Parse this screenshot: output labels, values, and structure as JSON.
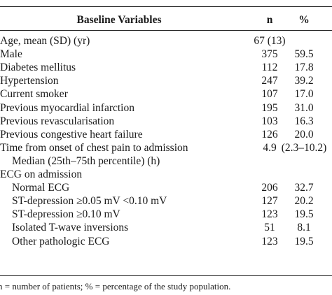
{
  "table": {
    "header": [
      "Baseline Variables",
      "n",
      "%"
    ],
    "rows": [
      {
        "label": "Age, mean (SD) (yr)",
        "n": "67 (13)"
      },
      {
        "label": "Male",
        "n": "375",
        "pct": "59.5"
      },
      {
        "label": "Diabetes mellitus",
        "n": "112",
        "pct": "17.8"
      },
      {
        "label": "Hypertension",
        "n": "247",
        "pct": "39.2"
      },
      {
        "label": "Current smoker",
        "n": "107",
        "pct": "17.0"
      },
      {
        "label": "Previous myocardial infarction",
        "n": "195",
        "pct": "31.0"
      },
      {
        "label": "Previous revascularisation",
        "n": "103",
        "pct": "16.3"
      },
      {
        "label": "Previous congestive heart failure",
        "n": "126",
        "pct": "20.0"
      },
      {
        "label": "Time from onset of chest pain to admission",
        "n": "4.9",
        "pct": "(2.3–10.2)"
      },
      {
        "label": "Median (25th–75th percentile) (h)",
        "indent": true
      },
      {
        "label": "ECG on admission"
      },
      {
        "label": "Normal ECG",
        "indent": true,
        "n": "206",
        "pct": "32.7"
      },
      {
        "label": "ST-depression ≥0.05 mV <0.10 mV",
        "indent": true,
        "n": "127",
        "pct": "20.2"
      },
      {
        "label": "ST-depression ≥0.10 mV",
        "indent": true,
        "n": "123",
        "pct": "19.5"
      },
      {
        "label": "Isolated T-wave inversions",
        "indent": true,
        "n": "51",
        "pct": "8.1"
      },
      {
        "label": "Other pathologic ECG",
        "indent": true,
        "n": "123",
        "pct": "19.5"
      }
    ],
    "footnote": "n = number of patients; % = percentage of the study population."
  }
}
